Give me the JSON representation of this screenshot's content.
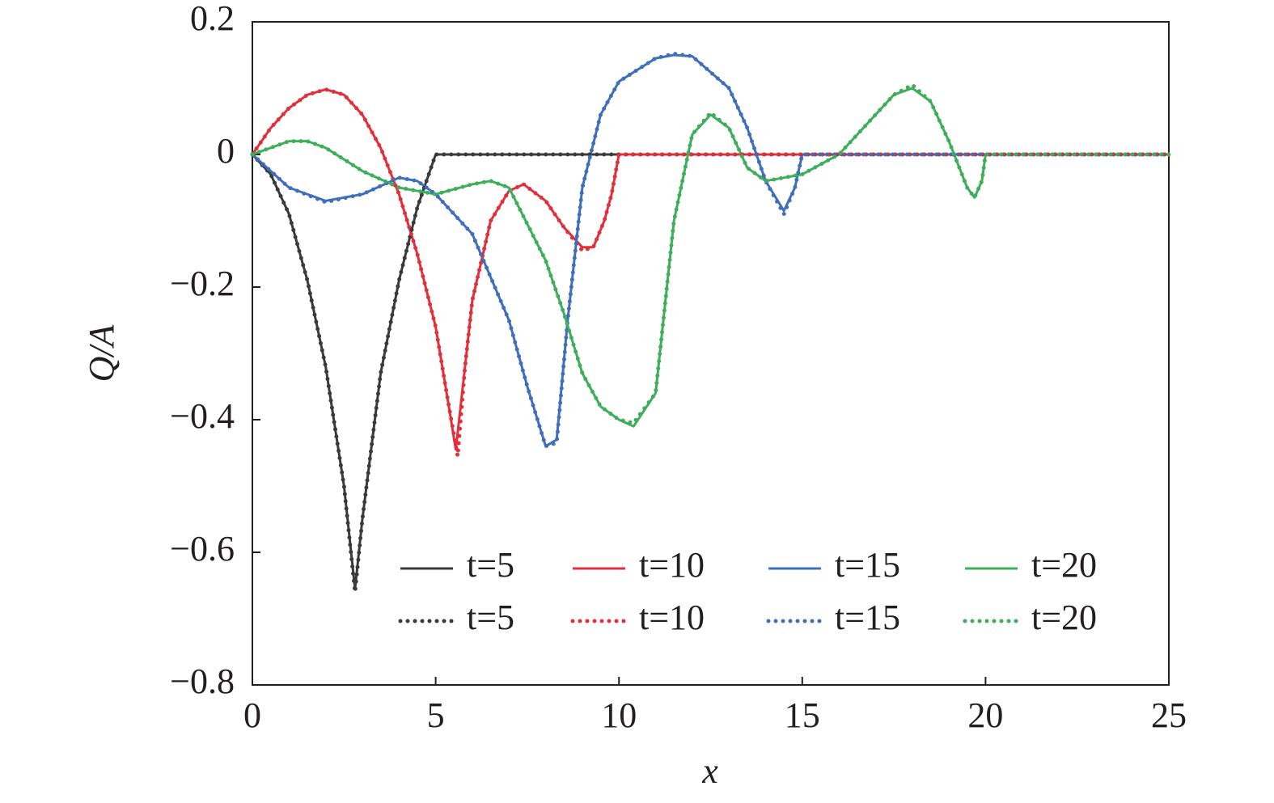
{
  "chart_data": {
    "type": "line",
    "xlabel": "x",
    "ylabel": "Q/A",
    "xlim": [
      0,
      25
    ],
    "xticks": [
      0,
      5,
      10,
      15,
      20,
      25
    ],
    "ylim": [
      -0.8,
      0.2
    ],
    "yticks": [
      {
        "value": -0.8,
        "label": "−0.8"
      },
      {
        "value": -0.6,
        "label": "−0.6"
      },
      {
        "value": -0.4,
        "label": "−0.4"
      },
      {
        "value": -0.2,
        "label": "−0.2"
      },
      0,
      0.2
    ],
    "series": [
      {
        "name": "t=5",
        "color": "#3a3a3a",
        "dash": "solid",
        "x": [
          0,
          0.5,
          1,
          1.5,
          2,
          2.5,
          2.8,
          3,
          3.5,
          4,
          4.5,
          5,
          25
        ],
        "values": [
          0,
          -0.03,
          -0.09,
          -0.19,
          -0.32,
          -0.5,
          -0.655,
          -0.55,
          -0.33,
          -0.19,
          -0.08,
          0,
          0
        ]
      },
      {
        "name": "t=10",
        "color": "#e0303c",
        "dash": "solid",
        "x": [
          0,
          0.5,
          1,
          1.5,
          2,
          2.5,
          3,
          3.5,
          4,
          4.5,
          5,
          5.3,
          5.55,
          5.8,
          6,
          6.5,
          7,
          7.4,
          8,
          8.5,
          9,
          9.3,
          9.6,
          9.8,
          10,
          25
        ],
        "values": [
          0,
          0.04,
          0.07,
          0.09,
          0.098,
          0.09,
          0.06,
          0.01,
          -0.06,
          -0.15,
          -0.26,
          -0.36,
          -0.445,
          -0.32,
          -0.22,
          -0.1,
          -0.055,
          -0.045,
          -0.07,
          -0.11,
          -0.14,
          -0.14,
          -0.1,
          -0.06,
          0,
          0
        ]
      },
      {
        "name": "t=15",
        "color": "#3f6fba",
        "dash": "solid",
        "x": [
          0,
          1,
          2,
          3,
          4,
          4.5,
          5,
          6,
          7,
          7.5,
          8,
          8.3,
          8.6,
          9,
          9.5,
          10,
          11,
          11.5,
          12,
          13,
          13.5,
          14,
          14.5,
          14.8,
          15,
          25
        ],
        "values": [
          0,
          -0.05,
          -0.07,
          -0.06,
          -0.035,
          -0.04,
          -0.06,
          -0.12,
          -0.25,
          -0.35,
          -0.44,
          -0.43,
          -0.25,
          -0.05,
          0.06,
          0.11,
          0.145,
          0.15,
          0.148,
          0.1,
          0.04,
          -0.04,
          -0.085,
          -0.05,
          0,
          0
        ]
      },
      {
        "name": "t=20",
        "color": "#3fae5a",
        "dash": "solid",
        "x": [
          0,
          1,
          1.5,
          2,
          3,
          4,
          5,
          6,
          6.5,
          7,
          8,
          8.5,
          9,
          9.5,
          10,
          10.4,
          11,
          11.5,
          12,
          12.5,
          13,
          13.5,
          14,
          15,
          16,
          17,
          17.5,
          18,
          18.5,
          19,
          19.5,
          19.7,
          19.9,
          20,
          25
        ],
        "values": [
          0,
          0.02,
          0.02,
          0.01,
          -0.025,
          -0.05,
          -0.06,
          -0.045,
          -0.04,
          -0.05,
          -0.16,
          -0.24,
          -0.33,
          -0.38,
          -0.4,
          -0.41,
          -0.36,
          -0.1,
          0.03,
          0.06,
          0.04,
          -0.02,
          -0.04,
          -0.03,
          0,
          0.06,
          0.09,
          0.1,
          0.08,
          0.02,
          -0.05,
          -0.065,
          -0.04,
          0,
          0
        ]
      },
      {
        "name": "t=5",
        "color": "#3a3a3a",
        "dash": "dotted",
        "x": [
          0,
          0.5,
          1,
          1.5,
          2,
          2.5,
          2.8,
          3,
          3.5,
          4,
          4.5,
          5,
          25
        ],
        "values": [
          0,
          -0.03,
          -0.09,
          -0.19,
          -0.32,
          -0.5,
          -0.66,
          -0.55,
          -0.33,
          -0.19,
          -0.08,
          0,
          0
        ]
      },
      {
        "name": "t=10",
        "color": "#e0303c",
        "dash": "dotted",
        "x": [
          0,
          0.5,
          1,
          1.5,
          2,
          2.5,
          3,
          3.5,
          4,
          4.5,
          5,
          5.3,
          5.6,
          5.8,
          6,
          6.5,
          7,
          7.4,
          8,
          8.5,
          9,
          9.3,
          9.6,
          9.8,
          10,
          25
        ],
        "values": [
          0,
          0.04,
          0.07,
          0.09,
          0.098,
          0.09,
          0.06,
          0.01,
          -0.06,
          -0.15,
          -0.26,
          -0.36,
          -0.455,
          -0.32,
          -0.22,
          -0.1,
          -0.055,
          -0.045,
          -0.07,
          -0.11,
          -0.145,
          -0.14,
          -0.1,
          -0.06,
          0,
          0
        ]
      },
      {
        "name": "t=15",
        "color": "#3f6fba",
        "dash": "dotted",
        "x": [
          0,
          1,
          2,
          3,
          4,
          4.5,
          5,
          6,
          7,
          7.5,
          8,
          8.3,
          8.6,
          9,
          9.5,
          10,
          11,
          11.5,
          12,
          13,
          13.5,
          14,
          14.5,
          14.8,
          15,
          25
        ],
        "values": [
          0,
          -0.05,
          -0.072,
          -0.06,
          -0.035,
          -0.04,
          -0.06,
          -0.12,
          -0.25,
          -0.35,
          -0.44,
          -0.435,
          -0.25,
          -0.05,
          0.06,
          0.11,
          0.145,
          0.152,
          0.148,
          0.1,
          0.04,
          -0.04,
          -0.09,
          -0.05,
          0,
          0
        ]
      },
      {
        "name": "t=20",
        "color": "#3fae5a",
        "dash": "dotted",
        "x": [
          0,
          1,
          1.5,
          2,
          3,
          4,
          5,
          6,
          6.5,
          7,
          8,
          8.5,
          9,
          9.5,
          10,
          10.4,
          11,
          11.5,
          12,
          12.5,
          13,
          13.5,
          14,
          15,
          16,
          17,
          17.5,
          18,
          18.5,
          19,
          19.5,
          19.7,
          19.9,
          20,
          25
        ],
        "values": [
          0,
          0.02,
          0.02,
          0.01,
          -0.025,
          -0.05,
          -0.06,
          -0.045,
          -0.04,
          -0.05,
          -0.16,
          -0.24,
          -0.33,
          -0.38,
          -0.4,
          -0.405,
          -0.36,
          -0.1,
          0.03,
          0.063,
          0.04,
          -0.02,
          -0.04,
          -0.03,
          0,
          0.06,
          0.09,
          0.105,
          0.08,
          0.02,
          -0.05,
          -0.065,
          -0.04,
          0,
          0
        ]
      }
    ]
  }
}
